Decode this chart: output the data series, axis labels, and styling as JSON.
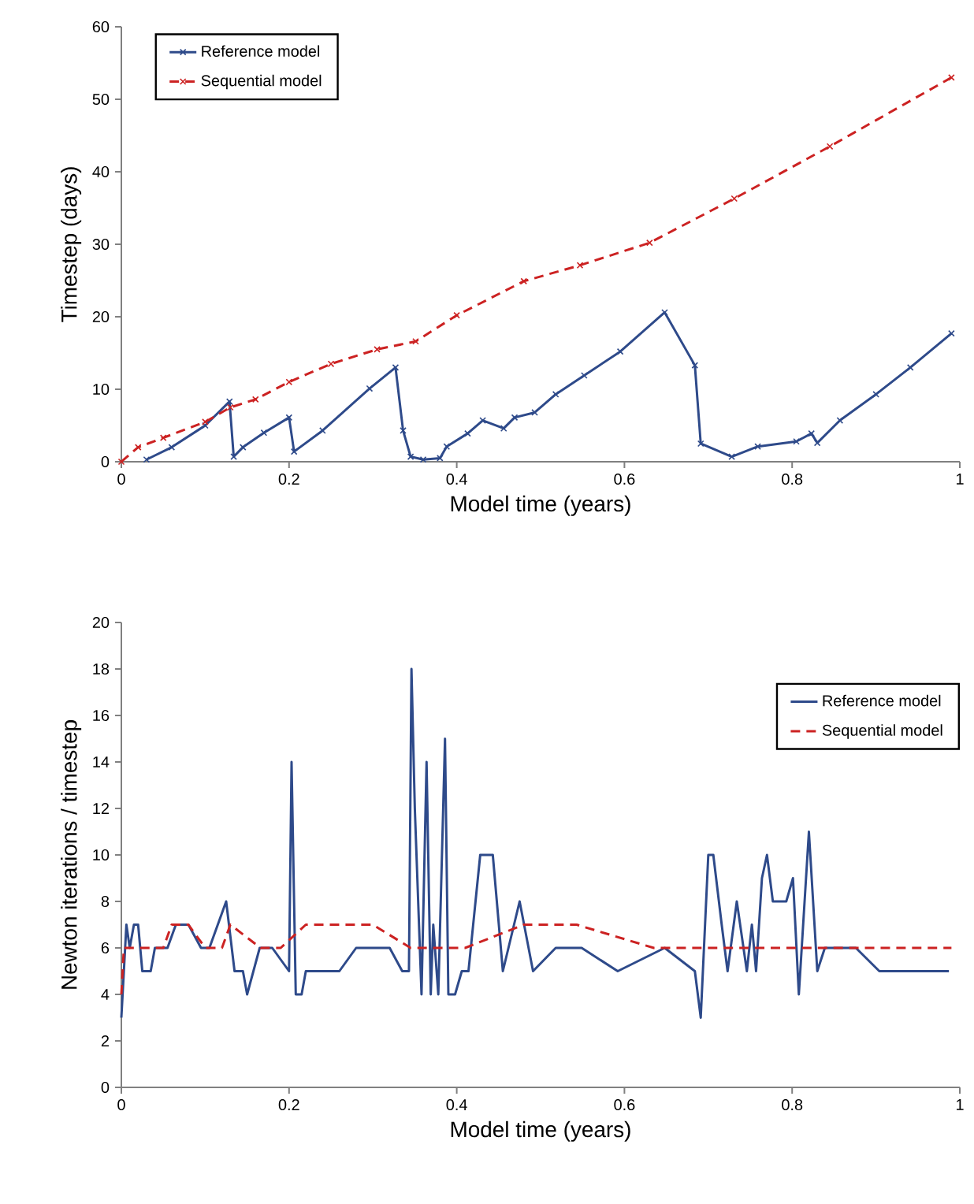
{
  "chart_data": [
    {
      "type": "line",
      "xlabel": "Model time (years)",
      "ylabel": "Timestep (days)",
      "xlim": [
        0,
        1
      ],
      "ylim": [
        0,
        60
      ],
      "xticks": [
        0,
        0.2,
        0.4,
        0.6,
        0.8,
        1
      ],
      "yticks": [
        0,
        10,
        20,
        30,
        40,
        50,
        60
      ],
      "legend": "top left",
      "marker": "cross",
      "series": [
        {
          "name": "Reference model",
          "color": "#2e4a8a",
          "line_style": "solid",
          "x": [
            0.03,
            0.06,
            0.1,
            0.129,
            0.134,
            0.145,
            0.17,
            0.2,
            0.206,
            0.24,
            0.296,
            0.327,
            0.336,
            0.345,
            0.36,
            0.38,
            0.388,
            0.413,
            0.431,
            0.456,
            0.469,
            0.493,
            0.518,
            0.552,
            0.595,
            0.648,
            0.684,
            0.691,
            0.728,
            0.759,
            0.805,
            0.823,
            0.83,
            0.857,
            0.9,
            0.941,
            0.99
          ],
          "values": [
            0.3,
            2,
            5,
            8.3,
            0.7,
            2,
            4,
            6.1,
            1.4,
            4.3,
            10.1,
            13,
            4.3,
            0.7,
            0.3,
            0.5,
            2.1,
            3.9,
            5.7,
            4.6,
            6.1,
            6.8,
            9.3,
            11.9,
            15.2,
            20.6,
            13.3,
            2.5,
            0.7,
            2.1,
            2.8,
            3.9,
            2.6,
            5.7,
            9.3,
            13,
            17.7
          ]
        },
        {
          "name": "Sequential model",
          "color": "#cc2222",
          "line_style": "dashed",
          "x": [
            0,
            0.02,
            0.05,
            0.1,
            0.13,
            0.16,
            0.2,
            0.25,
            0.305,
            0.351,
            0.4,
            0.48,
            0.547,
            0.63,
            0.731,
            0.845,
            0.99
          ],
          "values": [
            0,
            2,
            3.3,
            5.5,
            7.5,
            8.6,
            11,
            13.5,
            15.5,
            16.6,
            20.2,
            24.9,
            27.1,
            30.2,
            36.3,
            43.5,
            53
          ]
        }
      ]
    },
    {
      "type": "line",
      "xlabel": "Model time (years)",
      "ylabel": "Newton iterations / timestep",
      "xlim": [
        0,
        1
      ],
      "ylim": [
        0,
        20
      ],
      "xticks": [
        0,
        0.2,
        0.4,
        0.6,
        0.8,
        1
      ],
      "yticks": [
        0,
        2,
        4,
        6,
        8,
        10,
        12,
        14,
        16,
        18,
        20
      ],
      "legend": "top right",
      "series": [
        {
          "name": "Reference model",
          "color": "#2e4a8a",
          "line_style": "solid",
          "x": [
            0,
            0.006,
            0.01,
            0.015,
            0.02,
            0.025,
            0.035,
            0.04,
            0.055,
            0.065,
            0.08,
            0.095,
            0.105,
            0.125,
            0.135,
            0.145,
            0.15,
            0.165,
            0.18,
            0.2,
            0.203,
            0.208,
            0.215,
            0.22,
            0.26,
            0.28,
            0.32,
            0.335,
            0.343,
            0.346,
            0.35,
            0.358,
            0.364,
            0.369,
            0.372,
            0.378,
            0.386,
            0.39,
            0.398,
            0.406,
            0.414,
            0.428,
            0.443,
            0.455,
            0.475,
            0.491,
            0.518,
            0.549,
            0.592,
            0.648,
            0.684,
            0.691,
            0.7,
            0.706,
            0.716,
            0.723,
            0.734,
            0.746,
            0.752,
            0.757,
            0.764,
            0.77,
            0.777,
            0.793,
            0.801,
            0.808,
            0.82,
            0.83,
            0.839,
            0.876,
            0.904,
            0.987
          ],
          "values": [
            3,
            7,
            6,
            7,
            7,
            5,
            5,
            6,
            6,
            7,
            7,
            6,
            6,
            8,
            5,
            5,
            4,
            6,
            6,
            5,
            14,
            4,
            4,
            5,
            5,
            6,
            6,
            5,
            5,
            18,
            12,
            4,
            14,
            4,
            7,
            4,
            15,
            4,
            4,
            5,
            5,
            10,
            10,
            5,
            8,
            5,
            6,
            6,
            5,
            6,
            5,
            3,
            10,
            10,
            7,
            5,
            8,
            5,
            7,
            5,
            9,
            10,
            8,
            8,
            9,
            4,
            11,
            5,
            6,
            6,
            5,
            5
          ]
        },
        {
          "name": "Sequential model",
          "color": "#cc2222",
          "line_style": "dashed",
          "x": [
            0,
            0.003,
            0.05,
            0.06,
            0.08,
            0.1,
            0.12,
            0.13,
            0.166,
            0.19,
            0.22,
            0.3,
            0.345,
            0.41,
            0.48,
            0.543,
            0.635,
            0.99
          ],
          "values": [
            4,
            6,
            6,
            7,
            7,
            6,
            6,
            7,
            6,
            6,
            7,
            7,
            6,
            6,
            7,
            7,
            6,
            6
          ]
        }
      ]
    }
  ]
}
